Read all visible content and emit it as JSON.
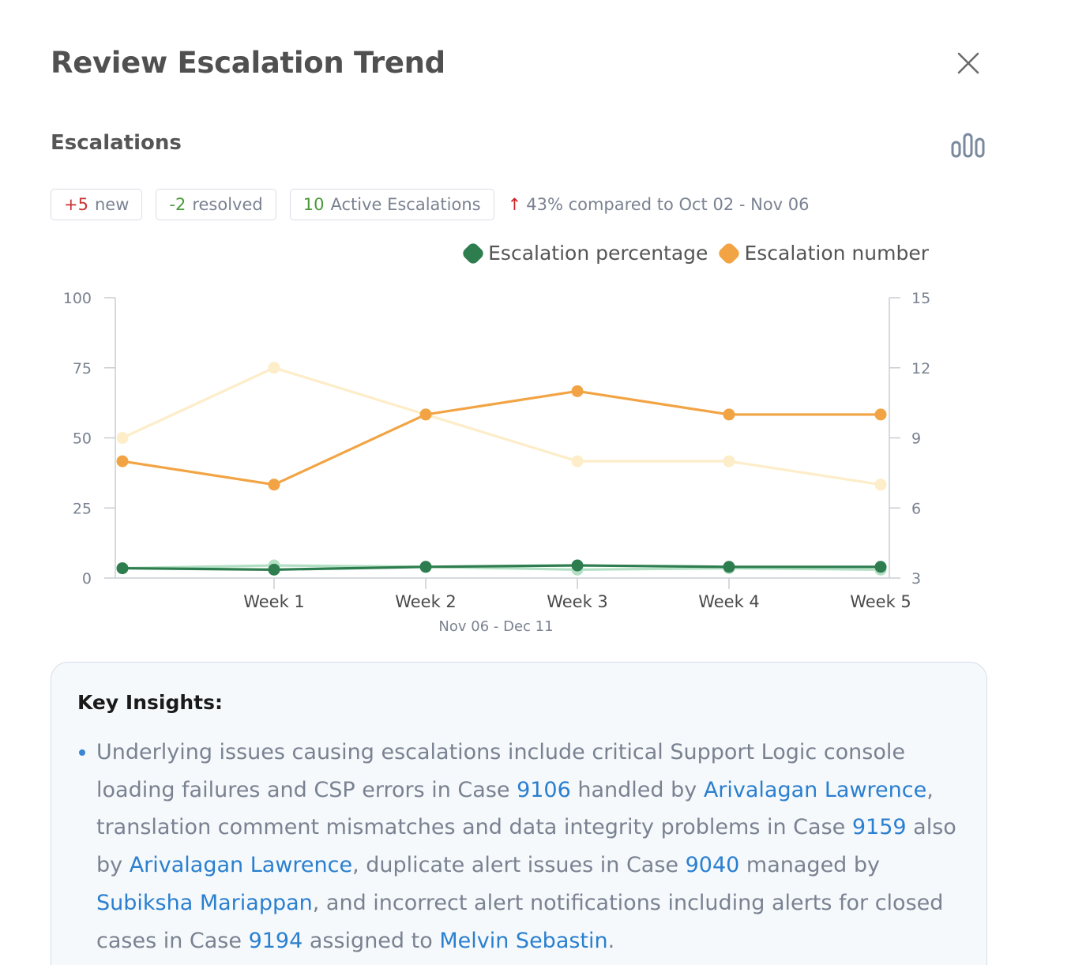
{
  "header": {
    "title": "Review Escalation Trend"
  },
  "section": {
    "title": "Escalations"
  },
  "chips": {
    "new_value": "+5",
    "new_label": "new",
    "resolved_value": "-2",
    "resolved_label": "resolved",
    "active_value": "10",
    "active_label": "Active Escalations"
  },
  "comparison": {
    "arrow": "↑",
    "text": "43% compared to Oct 02 - Nov 06"
  },
  "colors": {
    "percentage": "#2e7d4f",
    "percentage_prev": "#b3e0c4",
    "number": "#f2a444",
    "number_prev": "#fdedc8",
    "axis": "#c8cdd4",
    "tick_text": "#7a8291",
    "link": "#2a7fcf"
  },
  "chart_data": {
    "type": "line",
    "categories": [
      "",
      "Week 1",
      "Week 2",
      "Week 3",
      "Week 4",
      "Week 5"
    ],
    "xlabel": "Nov 06 - Dec 11",
    "y_left": {
      "ticks": [
        "0",
        "25",
        "50",
        "75",
        "100"
      ],
      "range": [
        0,
        100
      ]
    },
    "y_right": {
      "ticks": [
        "3",
        "6",
        "9",
        "12",
        "15"
      ],
      "range": [
        3,
        15
      ]
    },
    "legend": [
      "Escalation percentage",
      "Escalation number"
    ],
    "legend_position": "top-right",
    "series": [
      {
        "name": "Escalation percentage",
        "axis": "left",
        "style": "current",
        "values": [
          3.5,
          3,
          4,
          4.5,
          4,
          4
        ]
      },
      {
        "name": "Escalation number",
        "axis": "right",
        "style": "current",
        "values": [
          8,
          7,
          10,
          11,
          10,
          10
        ]
      },
      {
        "axis": "left",
        "style": "previous",
        "values": [
          3.5,
          4.5,
          4,
          3,
          3.5,
          3
        ]
      },
      {
        "axis": "right",
        "style": "previous",
        "values": [
          9,
          12,
          10,
          8,
          8,
          7
        ]
      }
    ]
  },
  "insights": {
    "title": "Key Insights:",
    "items": [
      {
        "parts": [
          {
            "text": "Underlying issues causing escalations include critical Support Logic console loading failures and CSP errors in Case "
          },
          {
            "text": "9106",
            "link": true,
            "kind": "case"
          },
          {
            "text": " handled by "
          },
          {
            "text": "Arivalagan Lawrence",
            "link": true,
            "kind": "person"
          },
          {
            "text": ", translation comment mismatches and data integrity problems in Case "
          },
          {
            "text": "9159",
            "link": true,
            "kind": "case"
          },
          {
            "text": " also by "
          },
          {
            "text": "Arivalagan Lawrence",
            "link": true,
            "kind": "person"
          },
          {
            "text": ", duplicate alert issues in Case "
          },
          {
            "text": "9040",
            "link": true,
            "kind": "case"
          },
          {
            "text": " managed by "
          },
          {
            "text": "Subiksha Mariappan",
            "link": true,
            "kind": "person"
          },
          {
            "text": ", and incorrect alert notifications including alerts for closed cases in Case "
          },
          {
            "text": "9194",
            "link": true,
            "kind": "case"
          },
          {
            "text": " assigned to "
          },
          {
            "text": "Melvin Sebastin",
            "link": true,
            "kind": "person"
          },
          {
            "text": "."
          }
        ]
      }
    ]
  }
}
